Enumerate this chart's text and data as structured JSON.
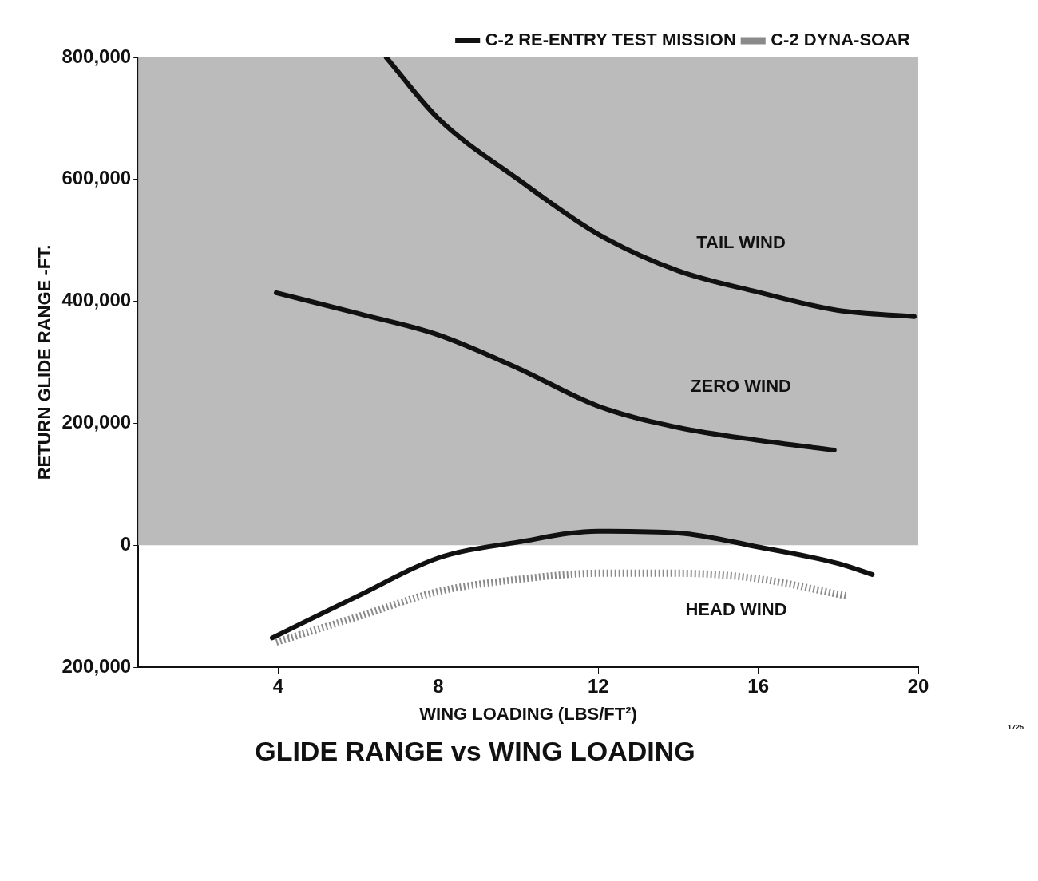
{
  "chart_data": {
    "type": "line",
    "title": "GLIDE RANGE vs WING LOADING",
    "xlabel": "WING LOADING (LBS/FT²)",
    "ylabel": "RETURN GLIDE RANGE -FT.",
    "xlim": [
      0.5,
      20
    ],
    "xticks": [
      4,
      8,
      12,
      16,
      20
    ],
    "ylim": [
      -200000,
      800000
    ],
    "yticks": [
      {
        "value": -200000,
        "label": "200,000"
      },
      {
        "value": 0,
        "label": "0"
      },
      {
        "value": 200000,
        "label": "200,000"
      },
      {
        "value": 400000,
        "label": "400,000"
      },
      {
        "value": 600000,
        "label": "600,000"
      },
      {
        "value": 800000,
        "label": "800,000"
      }
    ],
    "grid": false,
    "legend": "top right",
    "marker": "none",
    "bands": [
      {
        "axis": "y",
        "from": 0,
        "to": 800000,
        "color": "#bbbbbb"
      }
    ],
    "series": [
      {
        "name": "C-2 RE-ENTRY TEST MISSION",
        "color": "#111111",
        "x": [
          3.85,
          6,
          8,
          10,
          12,
          14,
          16,
          18,
          18.85
        ],
        "values": [
          -152000,
          -83000,
          -21000,
          5000,
          23000,
          20000,
          -3000,
          -30000,
          -48000
        ]
      },
      {
        "name": "C-2 DYNA-SOAR",
        "color": "#8a8a8a",
        "line_style": "dotted",
        "x": [
          3.95,
          6,
          8,
          10,
          12,
          14,
          16,
          18.2
        ],
        "values": [
          -159000,
          -117000,
          -76000,
          -56000,
          -46000,
          -46000,
          -55000,
          -83000
        ]
      },
      {
        "color": "#111111",
        "x": [
          6.7,
          8,
          10,
          12,
          14,
          16,
          18,
          19.9
        ],
        "values": [
          800000,
          700000,
          600000,
          510000,
          450000,
          415000,
          385000,
          375000
        ]
      },
      {
        "color": "#111111",
        "x": [
          3.95,
          6,
          8,
          10,
          12,
          14,
          16,
          17.9
        ],
        "values": [
          414000,
          380000,
          345000,
          290000,
          228000,
          193000,
          172000,
          156000
        ]
      }
    ],
    "annotations": [
      "TAIL WIND",
      "ZERO WIND",
      "HEAD WIND",
      "1725"
    ]
  }
}
